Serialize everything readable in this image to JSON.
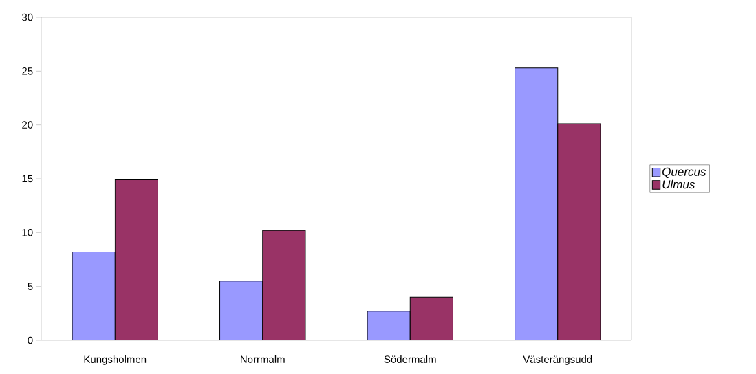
{
  "chart_data": {
    "type": "bar",
    "categories": [
      "Kungsholmen",
      "Norrmalm",
      "Södermalm",
      "Västerängsudd"
    ],
    "series": [
      {
        "name": "Quercus",
        "color": "#9999ff",
        "values": [
          8.2,
          5.5,
          2.7,
          25.3
        ]
      },
      {
        "name": "Ulmus",
        "color": "#993366",
        "values": [
          14.9,
          10.2,
          4.0,
          20.1
        ]
      }
    ],
    "ylim": [
      0,
      30
    ],
    "yticks": [
      0,
      5,
      10,
      15,
      20,
      25,
      30
    ],
    "grid": false,
    "legend": "right"
  }
}
